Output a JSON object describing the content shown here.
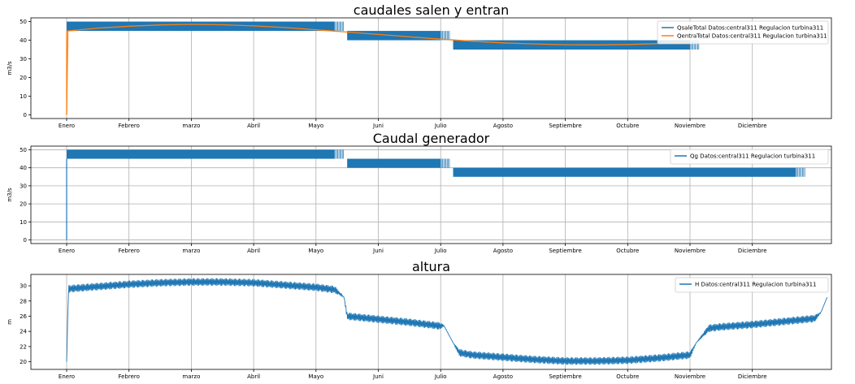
{
  "chart_data": [
    {
      "type": "line",
      "title": "caudales salen y entran",
      "ylabel": "m3/s",
      "xlabel": "",
      "categories": [
        "Enero",
        "Febrero",
        "marzo",
        "Abril",
        "Mayo",
        "Juni",
        "Julio",
        "Agosto",
        "Septiembre",
        "Octubre",
        "Noviembre",
        "Diciembre"
      ],
      "yticks": [
        0,
        10,
        20,
        30,
        40,
        50
      ],
      "ylim": [
        -2,
        52
      ],
      "grid": "x",
      "legend": "top-right",
      "series": [
        {
          "name": "QsaleTotal Datos:central311 Regulacion turbina311",
          "color": "#1f77b4",
          "kind": "band",
          "segments": [
            {
              "x0": 0.0,
              "x1": 4.3,
              "low": 45,
              "high": 50
            },
            {
              "x0": 4.5,
              "x1": 6.0,
              "low": 40,
              "high": 45
            },
            {
              "x0": 6.2,
              "x1": 10.0,
              "low": 35,
              "high": 40
            }
          ]
        },
        {
          "name": "QentraTotal Datos:central311 Regulacion turbina311",
          "color": "#ff7f0e",
          "kind": "line",
          "x": [
            0,
            0.02,
            0.5,
            1,
            1.5,
            2,
            2.5,
            3,
            3.5,
            4,
            4.5,
            5,
            5.5,
            6,
            6.5,
            7,
            7.5,
            8,
            8.5,
            9,
            9.5,
            10
          ],
          "y": [
            0,
            45,
            46.5,
            47.5,
            48.2,
            48.5,
            48.3,
            47.7,
            46.8,
            45.6,
            44.4,
            43.1,
            41.8,
            40.6,
            39.5,
            38.6,
            38.0,
            37.6,
            37.5,
            37.7,
            38.2,
            39
          ]
        }
      ]
    },
    {
      "type": "line",
      "title": "Caudal generador",
      "ylabel": "m3/s",
      "xlabel": "",
      "categories": [
        "Enero",
        "Febrero",
        "marzo",
        "Abril",
        "Mayo",
        "Juni",
        "Julio",
        "Agosto",
        "Septiembre",
        "Octubre",
        "Noviembre",
        "Diciembre"
      ],
      "yticks": [
        0,
        10,
        20,
        30,
        40,
        50
      ],
      "ylim": [
        -2,
        52
      ],
      "grid": "both",
      "legend": "top-right",
      "series": [
        {
          "name": "Qg Datos:central311 Regulacion turbina311",
          "color": "#1f77b4",
          "kind": "band",
          "segments": [
            {
              "x0": 0.0,
              "x1": 4.3,
              "low": 45,
              "high": 50
            },
            {
              "x0": 4.5,
              "x1": 6.0,
              "low": 40,
              "high": 45
            },
            {
              "x0": 6.2,
              "x1": 11.7,
              "low": 35,
              "high": 40
            }
          ]
        }
      ]
    },
    {
      "type": "line",
      "title": "altura",
      "ylabel": "m",
      "xlabel": "",
      "categories": [
        "Enero",
        "Febrero",
        "marzo",
        "Abril",
        "Mayo",
        "Juni",
        "Julio",
        "Agosto",
        "Septiembre",
        "Octubre",
        "Noviembre",
        "Diciembre"
      ],
      "yticks": [
        20,
        22,
        24,
        26,
        28,
        30
      ],
      "ylim": [
        19,
        31.5
      ],
      "grid": "x",
      "legend": "top-right",
      "series": [
        {
          "name": "H Datos:central311 Regulacion turbina311",
          "color": "#1f77b4",
          "kind": "noisy",
          "x": [
            0,
            0.03,
            0.5,
            1,
            1.5,
            2,
            2.5,
            3,
            3.5,
            4,
            4.3,
            4.45,
            4.5,
            5,
            5.5,
            6,
            6.05,
            6.2,
            6.3,
            6.5,
            7,
            7.5,
            8,
            8.5,
            9,
            9.5,
            10,
            10.1,
            10.3,
            10.5,
            11,
            11.5,
            12,
            12.1,
            12.2
          ],
          "y": [
            20,
            29.6,
            29.9,
            30.2,
            30.4,
            30.5,
            30.5,
            30.4,
            30.1,
            29.8,
            29.5,
            28.5,
            26.0,
            25.6,
            25.2,
            24.7,
            24.8,
            22.5,
            21.2,
            20.9,
            20.6,
            20.3,
            20.1,
            20.1,
            20.2,
            20.5,
            20.9,
            22.5,
            24.4,
            24.6,
            24.9,
            25.3,
            25.7,
            26.5,
            28.5
          ],
          "amplitude": [
            0,
            0.5,
            0.5,
            0.5,
            0.5,
            0.5,
            0.5,
            0.5,
            0.5,
            0.5,
            0.5,
            0,
            0.5,
            0.5,
            0.5,
            0.5,
            0,
            0,
            0.5,
            0.5,
            0.5,
            0.5,
            0.5,
            0.5,
            0.5,
            0.5,
            0.5,
            0,
            0.5,
            0.5,
            0.5,
            0.5,
            0.5,
            0,
            0
          ]
        }
      ]
    }
  ]
}
